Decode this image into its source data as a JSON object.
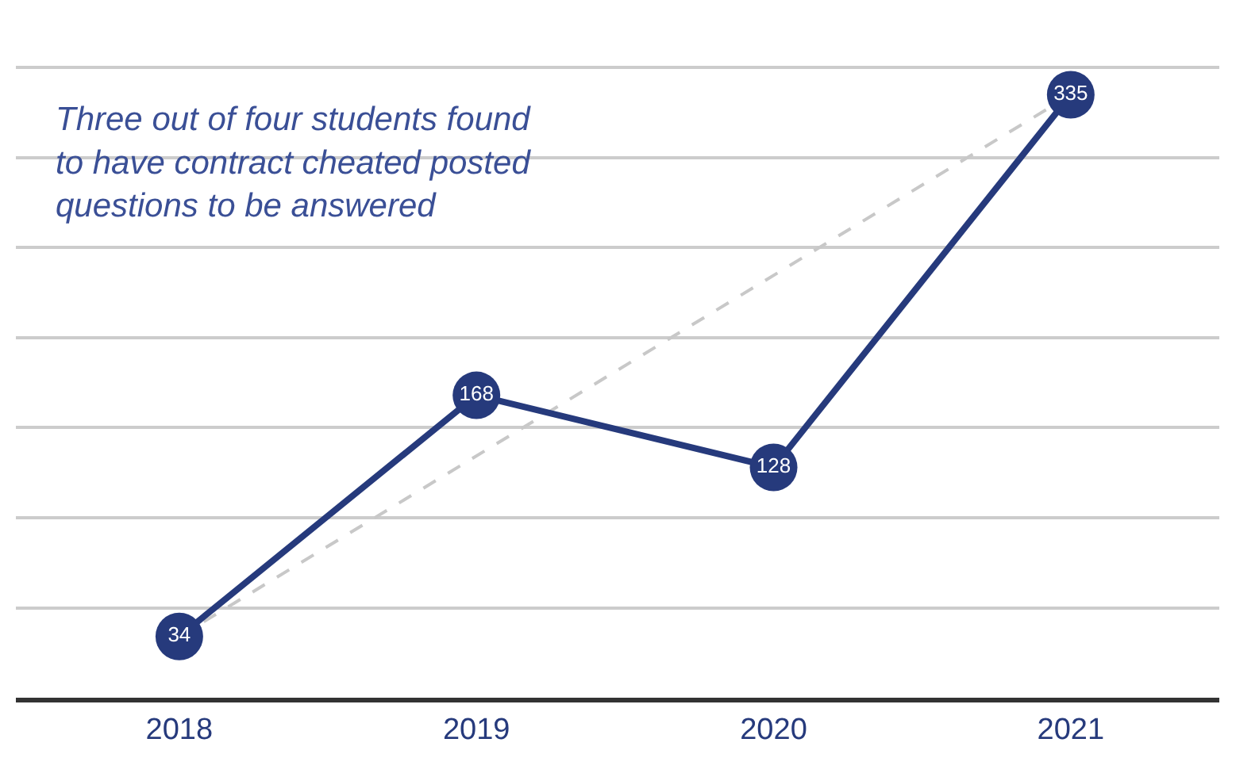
{
  "chart_data": {
    "type": "line",
    "categories": [
      "2018",
      "2019",
      "2020",
      "2021"
    ],
    "series": [
      {
        "color": "#263a7c",
        "values": [
          34,
          168,
          128,
          335
        ],
        "marker": "circle",
        "line_style": "solid",
        "data_labels": true
      },
      {
        "type": "line",
        "color": "#c8c8c8",
        "values": [
          34,
          null,
          null,
          335
        ],
        "marker": "none",
        "line_style": "dashed"
      }
    ],
    "tick_labels": "x",
    "grid": "y",
    "annotations": [
      "Three out of four students found to have contract cheated posted questions to be answered"
    ]
  }
}
